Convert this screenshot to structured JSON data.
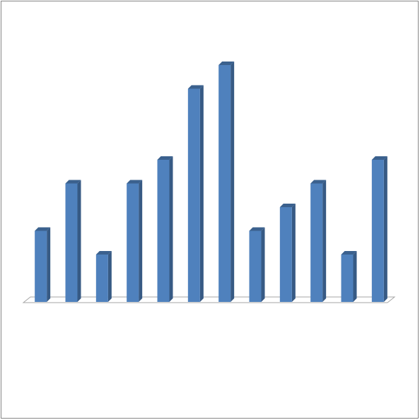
{
  "chart_data": {
    "type": "bar",
    "categories": [
      null,
      null,
      null,
      null,
      null,
      null,
      null,
      null,
      null,
      null,
      null,
      null
    ],
    "values": [
      3,
      5,
      2,
      5,
      6,
      9,
      10,
      3,
      4,
      5,
      2,
      6
    ],
    "color": "#4f81bd",
    "ylim": [
      0,
      10
    ]
  }
}
